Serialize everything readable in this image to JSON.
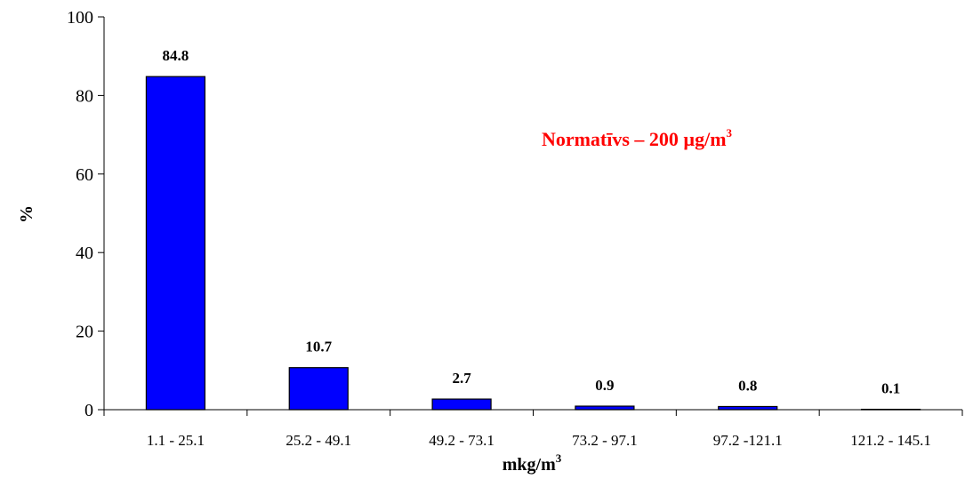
{
  "chart_data": {
    "type": "bar",
    "categories": [
      "1.1 - 25.1",
      "25.2 - 49.1",
      "49.2 - 73.1",
      "73.2 - 97.1",
      "97.2 -121.1",
      "121.2 - 145.1"
    ],
    "values": [
      84.8,
      10.7,
      2.7,
      0.9,
      0.8,
      0.1
    ],
    "data_labels": [
      "84.8",
      "10.7",
      "2.7",
      "0.9",
      "0.8",
      "0.1"
    ],
    "ylim": [
      0,
      100
    ],
    "yticks": [
      0,
      20,
      40,
      60,
      80,
      100
    ],
    "ytick_labels": [
      "0",
      "20",
      "40",
      "60",
      "80",
      "100"
    ],
    "ylabel": "%",
    "xlabel": {
      "base": "mkg/m",
      "sup": "3"
    },
    "annotation": {
      "base": "Normatīvs – 200 µg/m",
      "sup": "3"
    },
    "bar_color": "#0000ff",
    "annotation_color": "#ff0000",
    "grid": false
  }
}
